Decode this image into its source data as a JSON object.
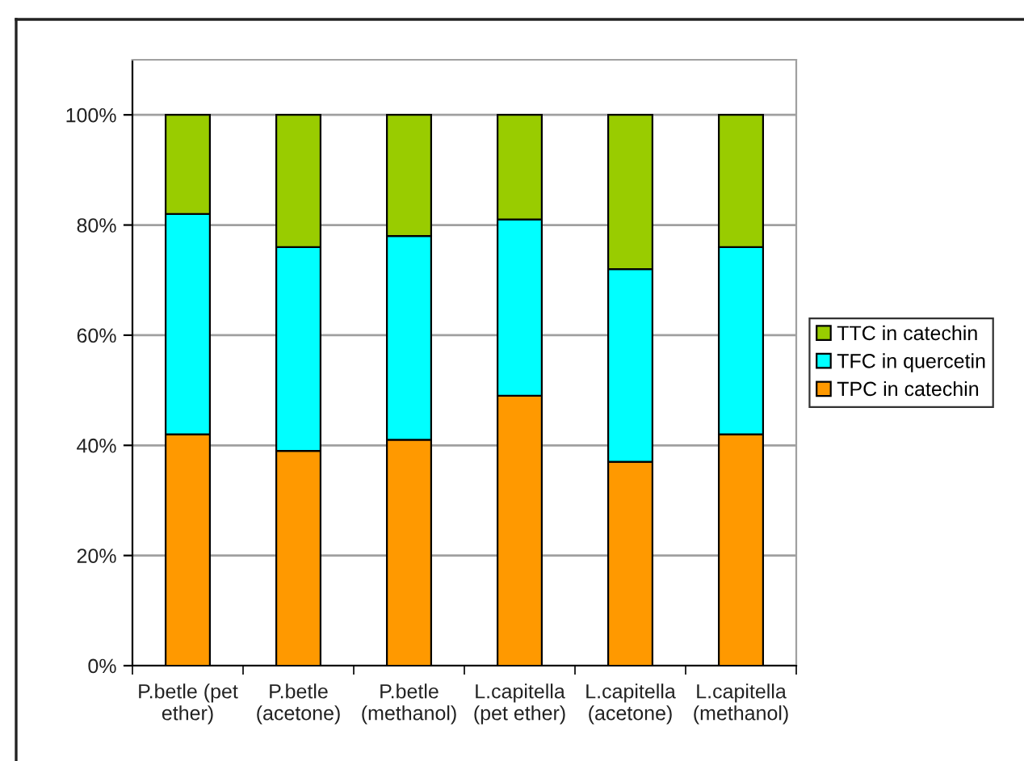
{
  "chart_data": {
    "type": "bar",
    "stacked": true,
    "categories": [
      "P.betle (pet\nether)",
      "P.betle\n(acetone)",
      "P.betle\n(methanol)",
      "L.capitella\n(pet ether)",
      "L.capitella\n(acetone)",
      "L.capitella\n(methanol)"
    ],
    "series": [
      {
        "name": "TPC in catechin",
        "color": "#ff9900",
        "values": [
          42,
          39,
          41,
          49,
          37,
          42
        ]
      },
      {
        "name": "TFC in quercetin",
        "color": "#00ffff",
        "values": [
          40,
          37,
          37,
          32,
          35,
          34
        ]
      },
      {
        "name": "TTC in catechin",
        "color": "#99cc00",
        "values": [
          18,
          24,
          22,
          19,
          28,
          24
        ]
      }
    ],
    "ylim": [
      0,
      110
    ],
    "yticks": [
      {
        "value": 0,
        "label": "0%"
      },
      {
        "value": 20,
        "label": "20%"
      },
      {
        "value": 40,
        "label": "40%"
      },
      {
        "value": 60,
        "label": "60%"
      },
      {
        "value": 80,
        "label": "80%"
      },
      {
        "value": 100,
        "label": "100%"
      }
    ],
    "grid": "y",
    "legend": "right"
  }
}
